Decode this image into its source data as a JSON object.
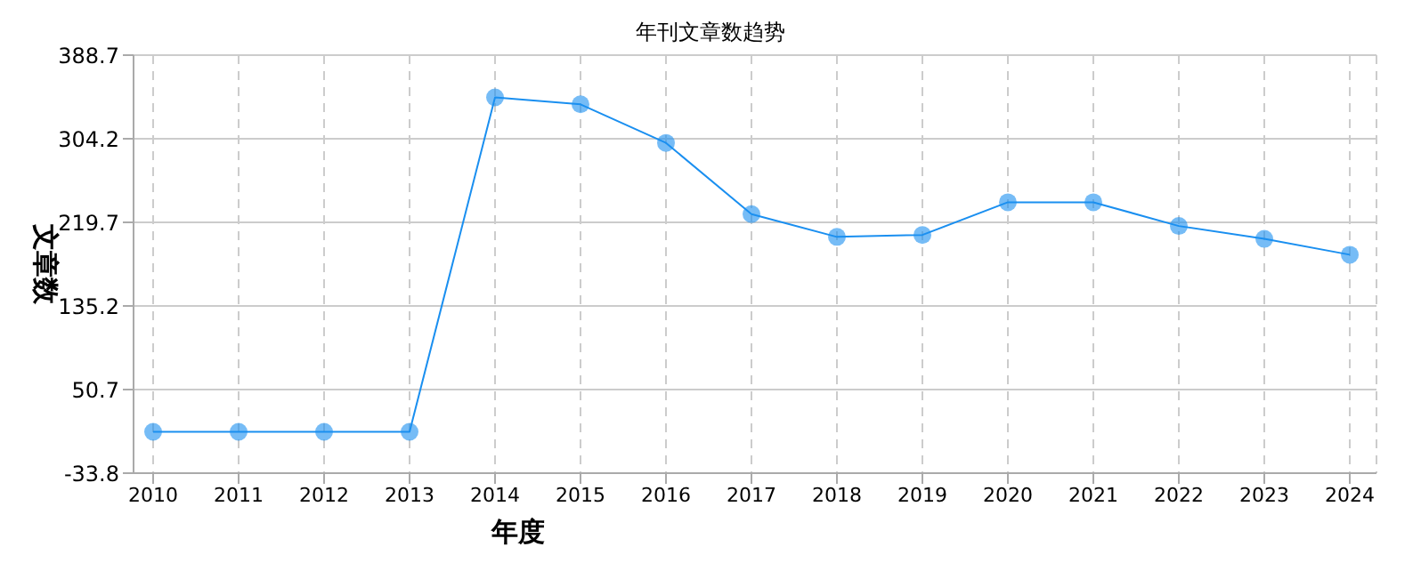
{
  "chart_data": {
    "type": "line",
    "title": "年刊文章数趋势",
    "xlabel": "年度",
    "ylabel": "文章数",
    "categories": [
      "2010",
      "2011",
      "2012",
      "2013",
      "2014",
      "2015",
      "2016",
      "2017",
      "2018",
      "2019",
      "2020",
      "2021",
      "2022",
      "2023",
      "2024"
    ],
    "series": [
      {
        "color": "#1a8ff0",
        "values": [
          8,
          8,
          8,
          8,
          346,
          339,
          300,
          228,
          205,
          207,
          240,
          240,
          216,
          203,
          187
        ]
      }
    ],
    "ylim": [
      -33.8,
      388.7
    ],
    "yticks": [
      -33.8,
      50.7,
      135.2,
      219.7,
      304.2,
      388.7
    ],
    "grid": true,
    "marker": "circle",
    "line_style": "solid",
    "legend": false
  }
}
